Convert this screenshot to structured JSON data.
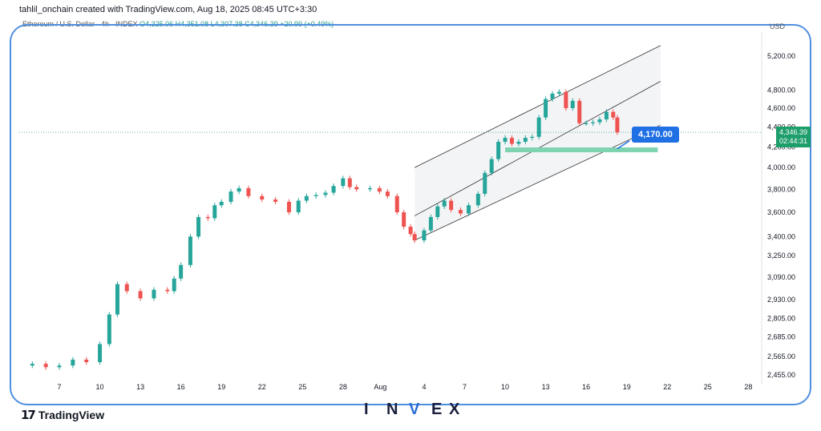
{
  "header": {
    "creator": "tahlil_onchain created with TradingView.com, Aug 18, 2025 08:45 UTC+3:30",
    "symbol": "Ethereum / U.S. Dollar · 4h · INDEX",
    "ohlc": "O4,325.06 H4,351.08 L4,307.38 C4,346.39 +20.99 (+0.49%)",
    "currency": "USD"
  },
  "price_label": {
    "value": "4,346.39",
    "countdown": "02:44:31"
  },
  "callout": {
    "text": "4,170.00"
  },
  "footer": {
    "logo_text": "TradingView",
    "brand_letters": [
      "I",
      "N",
      "V",
      "E",
      "X"
    ]
  },
  "colors": {
    "up": "#26a69a",
    "down": "#ef5350",
    "channel": "#333333",
    "zone": "#7fd3b0",
    "frame": "#4f8fe0",
    "accent": "#1f6fe5"
  },
  "chart_data": {
    "type": "candlestick",
    "title": "",
    "y_axis_ticks": [
      2455,
      2565,
      2685,
      2805,
      2930,
      3090,
      3250,
      3400,
      3600,
      3800,
      4000,
      4200,
      4400,
      4600,
      4800,
      5200
    ],
    "y_axis_labels": [
      "2,455.00",
      "2,565.00",
      "2,685.00",
      "2,805.00",
      "2,930.00",
      "3,090.00",
      "3,250.00",
      "3,400.00",
      "3,600.00",
      "3,800.00",
      "4,000.00",
      "4,200.00",
      "4,400.00",
      "4,600.00",
      "4,800.00",
      "5,200.00"
    ],
    "x_axis_labels": [
      "7",
      "10",
      "13",
      "16",
      "19",
      "22",
      "25",
      "28",
      "Aug",
      "4",
      "7",
      "10",
      "13",
      "16",
      "19",
      "22",
      "25",
      "28"
    ],
    "series": [
      {
        "points": [
          {
            "d": 5.0,
            "c": 2520
          },
          {
            "d": 6.0,
            "c": 2500
          },
          {
            "d": 7.0,
            "c": 2510
          },
          {
            "d": 8.0,
            "c": 2545
          },
          {
            "d": 9.0,
            "c": 2530
          },
          {
            "d": 10.0,
            "c": 2640
          },
          {
            "d": 10.7,
            "c": 2830
          },
          {
            "d": 11.3,
            "c": 3040
          },
          {
            "d": 12.0,
            "c": 2990
          },
          {
            "d": 13.0,
            "c": 2940
          },
          {
            "d": 14.0,
            "c": 3000
          },
          {
            "d": 15.0,
            "c": 2990
          },
          {
            "d": 15.5,
            "c": 3080
          },
          {
            "d": 16.0,
            "c": 3180
          },
          {
            "d": 16.7,
            "c": 3400
          },
          {
            "d": 17.3,
            "c": 3560
          },
          {
            "d": 18.0,
            "c": 3550
          },
          {
            "d": 18.5,
            "c": 3660
          },
          {
            "d": 19.0,
            "c": 3690
          },
          {
            "d": 19.7,
            "c": 3780
          },
          {
            "d": 20.3,
            "c": 3810
          },
          {
            "d": 21.0,
            "c": 3740
          },
          {
            "d": 22.0,
            "c": 3710
          },
          {
            "d": 23.0,
            "c": 3690
          },
          {
            "d": 24.0,
            "c": 3600
          },
          {
            "d": 24.7,
            "c": 3700
          },
          {
            "d": 25.3,
            "c": 3740
          },
          {
            "d": 26.0,
            "c": 3750
          },
          {
            "d": 26.7,
            "c": 3770
          },
          {
            "d": 27.3,
            "c": 3830
          },
          {
            "d": 28.0,
            "c": 3900
          },
          {
            "d": 28.5,
            "c": 3820
          },
          {
            "d": 29.0,
            "c": 3800
          },
          {
            "d": 30.0,
            "c": 3810
          },
          {
            "d": 30.7,
            "c": 3780
          },
          {
            "d": 31.3,
            "c": 3740
          },
          {
            "d": 32.0,
            "c": 3600
          },
          {
            "d": 32.5,
            "c": 3480
          },
          {
            "d": 33.0,
            "c": 3420
          },
          {
            "d": 33.3,
            "c": 3370
          },
          {
            "d": 34.0,
            "c": 3450
          },
          {
            "d": 34.5,
            "c": 3560
          },
          {
            "d": 35.0,
            "c": 3650
          },
          {
            "d": 35.5,
            "c": 3700
          },
          {
            "d": 36.0,
            "c": 3620
          },
          {
            "d": 36.7,
            "c": 3590
          },
          {
            "d": 37.3,
            "c": 3660
          },
          {
            "d": 38.0,
            "c": 3760
          },
          {
            "d": 38.5,
            "c": 3950
          },
          {
            "d": 39.0,
            "c": 4080
          },
          {
            "d": 39.5,
            "c": 4250
          },
          {
            "d": 40.0,
            "c": 4290
          },
          {
            "d": 40.5,
            "c": 4230
          },
          {
            "d": 41.0,
            "c": 4250
          },
          {
            "d": 41.5,
            "c": 4290
          },
          {
            "d": 42.0,
            "c": 4300
          },
          {
            "d": 42.5,
            "c": 4500
          },
          {
            "d": 43.0,
            "c": 4700
          },
          {
            "d": 43.5,
            "c": 4760
          },
          {
            "d": 44.0,
            "c": 4780
          },
          {
            "d": 44.5,
            "c": 4600
          },
          {
            "d": 45.0,
            "c": 4680
          },
          {
            "d": 45.5,
            "c": 4440
          },
          {
            "d": 46.0,
            "c": 4440
          },
          {
            "d": 46.5,
            "c": 4450
          },
          {
            "d": 47.0,
            "c": 4480
          },
          {
            "d": 47.5,
            "c": 4560
          },
          {
            "d": 48.0,
            "c": 4500
          },
          {
            "d": 48.3,
            "c": 4346
          }
        ]
      }
    ]
  }
}
